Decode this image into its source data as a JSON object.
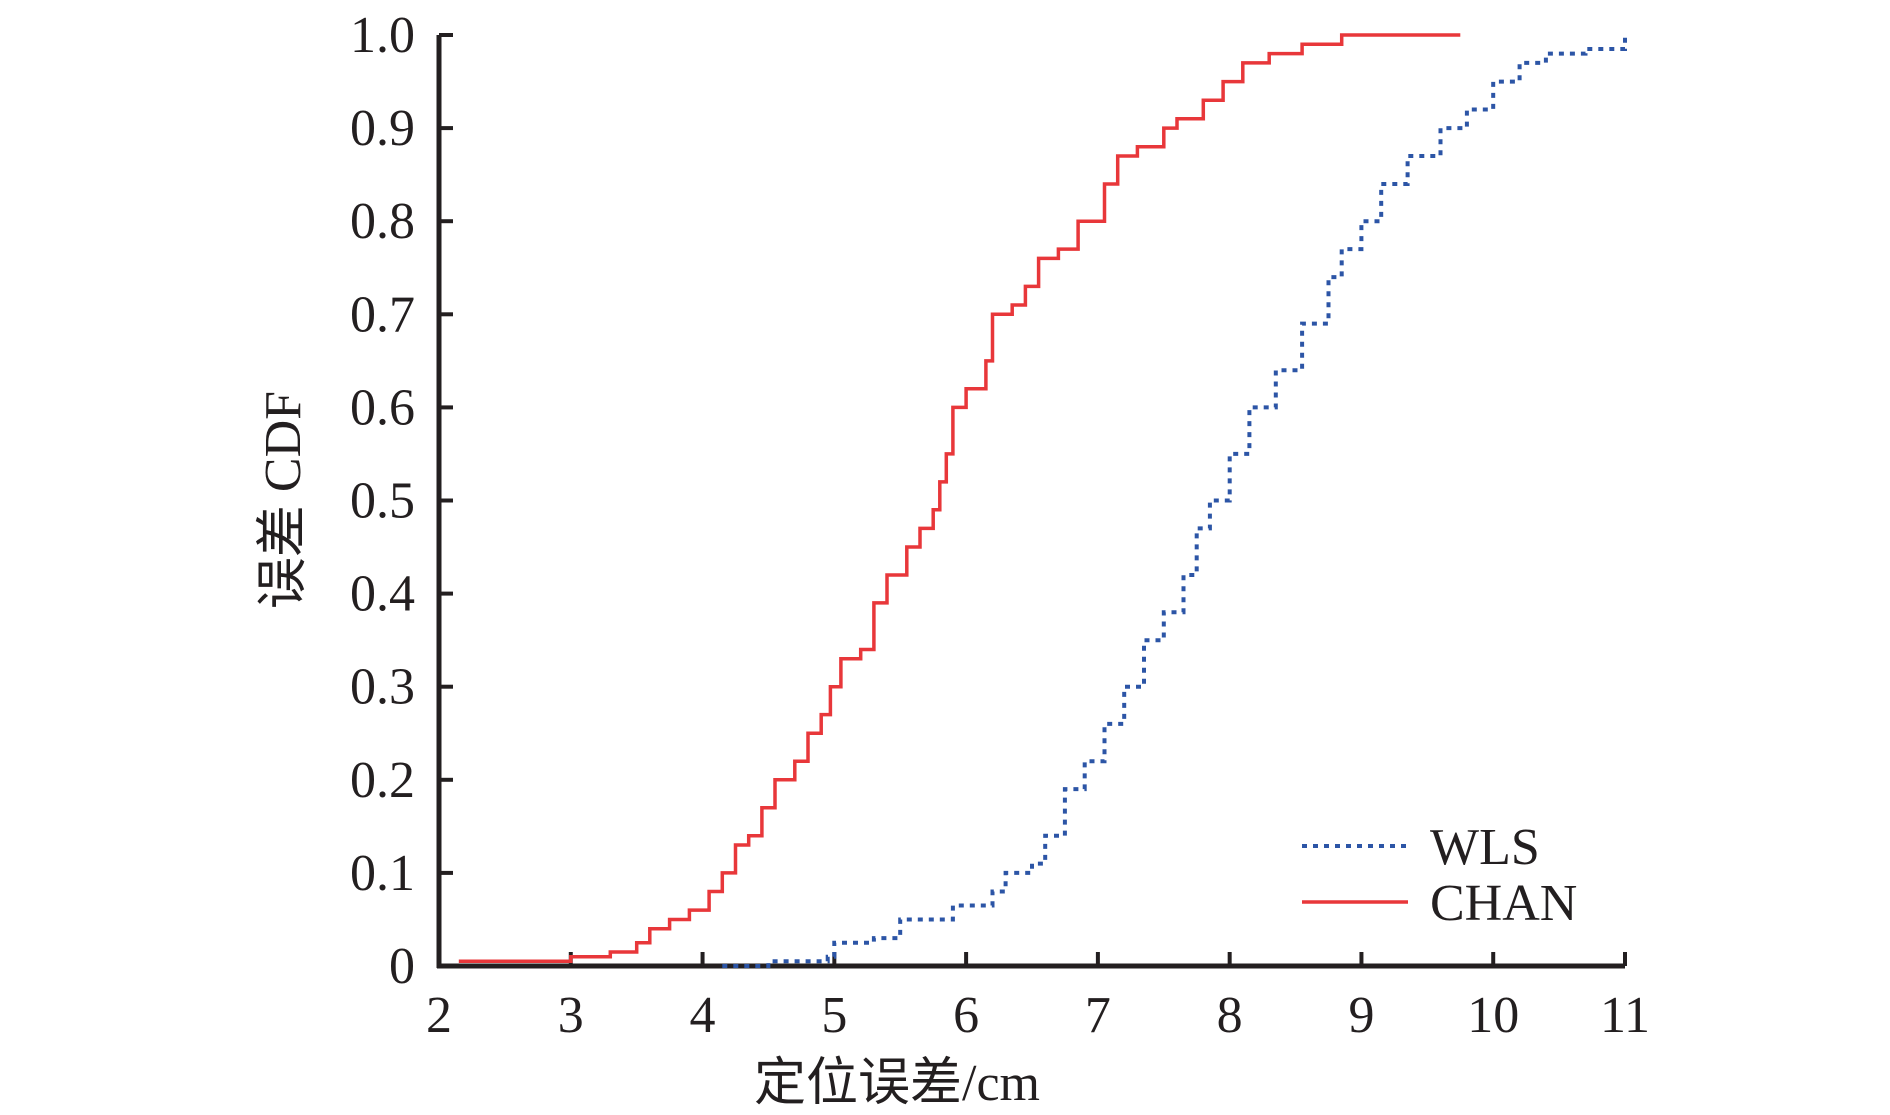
{
  "chart_data": {
    "type": "line",
    "title": "",
    "xlabel": "定位误差/cm",
    "ylabel": "误差 CDF",
    "xlim": [
      2,
      11
    ],
    "ylim": [
      0,
      1
    ],
    "xticks": [
      "2",
      "3",
      "4",
      "5",
      "6",
      "7",
      "8",
      "9",
      "10",
      "11"
    ],
    "yticks": [
      "0",
      "0.1",
      "0.2",
      "0.3",
      "0.4",
      "0.5",
      "0.6",
      "0.7",
      "0.8",
      "0.9",
      "1.0"
    ],
    "grid": false,
    "legend_position": "bottom-right",
    "series": [
      {
        "name": "WLS",
        "color": "#2c55a6",
        "line_style": "dotted",
        "points": [
          [
            4.15,
            0.0
          ],
          [
            4.5,
            0.005
          ],
          [
            4.95,
            0.01
          ],
          [
            5.0,
            0.025
          ],
          [
            5.3,
            0.03
          ],
          [
            5.5,
            0.05
          ],
          [
            5.9,
            0.065
          ],
          [
            6.2,
            0.08
          ],
          [
            6.3,
            0.1
          ],
          [
            6.5,
            0.11
          ],
          [
            6.6,
            0.14
          ],
          [
            6.75,
            0.19
          ],
          [
            6.9,
            0.22
          ],
          [
            7.05,
            0.26
          ],
          [
            7.2,
            0.3
          ],
          [
            7.35,
            0.35
          ],
          [
            7.5,
            0.38
          ],
          [
            7.65,
            0.42
          ],
          [
            7.75,
            0.47
          ],
          [
            7.85,
            0.5
          ],
          [
            8.0,
            0.55
          ],
          [
            8.15,
            0.6
          ],
          [
            8.35,
            0.64
          ],
          [
            8.55,
            0.69
          ],
          [
            8.75,
            0.74
          ],
          [
            8.85,
            0.77
          ],
          [
            9.0,
            0.8
          ],
          [
            9.15,
            0.84
          ],
          [
            9.35,
            0.87
          ],
          [
            9.6,
            0.9
          ],
          [
            9.8,
            0.92
          ],
          [
            10.0,
            0.95
          ],
          [
            10.2,
            0.97
          ],
          [
            10.4,
            0.98
          ],
          [
            10.7,
            0.985
          ],
          [
            11.0,
            1.0
          ]
        ]
      },
      {
        "name": "CHAN",
        "color": "#e8373a",
        "line_style": "solid",
        "points": [
          [
            2.15,
            0.005
          ],
          [
            2.5,
            0.005
          ],
          [
            3.0,
            0.01
          ],
          [
            3.3,
            0.015
          ],
          [
            3.5,
            0.025
          ],
          [
            3.6,
            0.04
          ],
          [
            3.75,
            0.05
          ],
          [
            3.9,
            0.06
          ],
          [
            4.05,
            0.08
          ],
          [
            4.15,
            0.1
          ],
          [
            4.25,
            0.13
          ],
          [
            4.35,
            0.14
          ],
          [
            4.45,
            0.17
          ],
          [
            4.55,
            0.2
          ],
          [
            4.7,
            0.22
          ],
          [
            4.8,
            0.25
          ],
          [
            4.9,
            0.27
          ],
          [
            4.97,
            0.3
          ],
          [
            5.05,
            0.33
          ],
          [
            5.2,
            0.34
          ],
          [
            5.3,
            0.39
          ],
          [
            5.4,
            0.42
          ],
          [
            5.55,
            0.45
          ],
          [
            5.65,
            0.47
          ],
          [
            5.75,
            0.49
          ],
          [
            5.8,
            0.52
          ],
          [
            5.85,
            0.55
          ],
          [
            5.9,
            0.6
          ],
          [
            6.0,
            0.62
          ],
          [
            6.15,
            0.65
          ],
          [
            6.2,
            0.7
          ],
          [
            6.35,
            0.71
          ],
          [
            6.45,
            0.73
          ],
          [
            6.55,
            0.76
          ],
          [
            6.7,
            0.77
          ],
          [
            6.85,
            0.8
          ],
          [
            7.0,
            0.8
          ],
          [
            7.05,
            0.84
          ],
          [
            7.15,
            0.87
          ],
          [
            7.3,
            0.88
          ],
          [
            7.5,
            0.9
          ],
          [
            7.6,
            0.91
          ],
          [
            7.8,
            0.93
          ],
          [
            7.95,
            0.95
          ],
          [
            8.1,
            0.97
          ],
          [
            8.3,
            0.98
          ],
          [
            8.55,
            0.99
          ],
          [
            8.85,
            1.0
          ],
          [
            9.75,
            1.0
          ]
        ]
      }
    ]
  }
}
